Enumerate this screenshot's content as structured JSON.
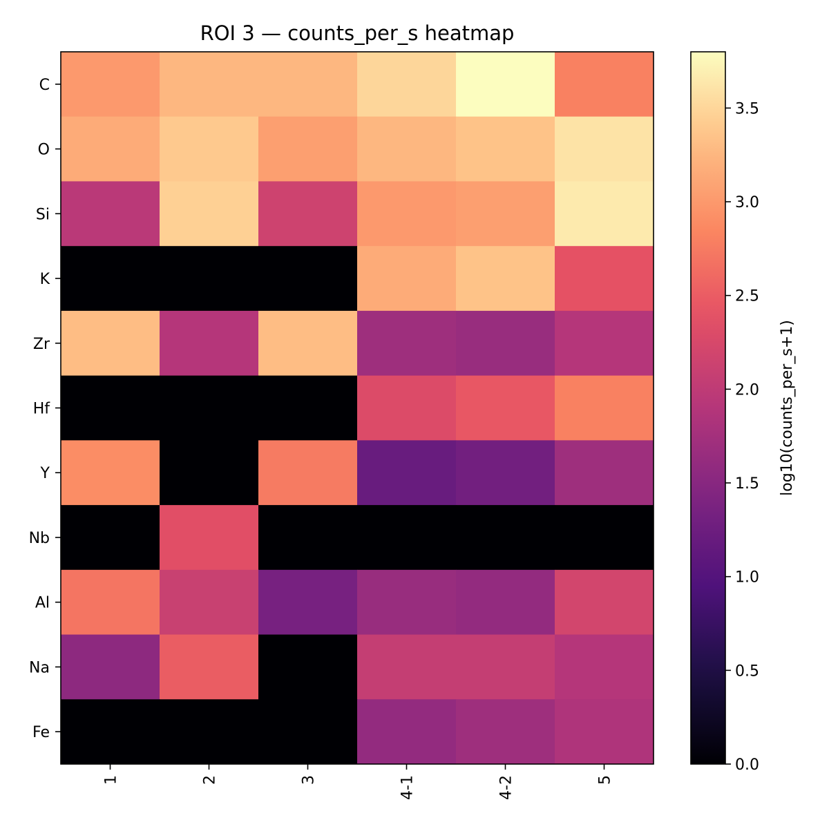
{
  "chart_data": {
    "type": "heatmap",
    "title": "ROI 3 — counts_per_s heatmap",
    "xlabel": "",
    "ylabel": "",
    "x_categories": [
      "1",
      "2",
      "3",
      "4-1",
      "4-2",
      "5"
    ],
    "y_categories": [
      "C",
      "O",
      "Si",
      "K",
      "Zr",
      "Hf",
      "Y",
      "Nb",
      "Al",
      "Na",
      "Fe"
    ],
    "values": [
      [
        3.0,
        3.25,
        3.25,
        3.5,
        3.8,
        2.8
      ],
      [
        3.15,
        3.4,
        3.05,
        3.25,
        3.35,
        3.6
      ],
      [
        1.95,
        3.45,
        2.15,
        3.0,
        3.05,
        3.65
      ],
      [
        0.0,
        0.0,
        0.0,
        3.15,
        3.35,
        2.4
      ],
      [
        3.3,
        1.9,
        3.3,
        1.7,
        1.65,
        1.9
      ],
      [
        0.0,
        0.0,
        0.0,
        2.3,
        2.45,
        2.8
      ],
      [
        2.9,
        0.0,
        2.75,
        1.2,
        1.3,
        1.7
      ],
      [
        0.0,
        2.35,
        0.0,
        0.0,
        0.0,
        0.0
      ],
      [
        2.7,
        2.1,
        1.35,
        1.65,
        1.6,
        2.2
      ],
      [
        1.55,
        2.5,
        0.0,
        2.05,
        2.05,
        1.9
      ],
      [
        0.0,
        0.0,
        0.0,
        1.6,
        1.7,
        1.85
      ]
    ],
    "colormap": "magma",
    "vmin": 0.0,
    "vmax": 3.8,
    "colorbar": {
      "label": "log10(counts_per_s+1)",
      "ticks": [
        0.0,
        0.5,
        1.0,
        1.5,
        2.0,
        2.5,
        3.0,
        3.5
      ],
      "tick_labels": [
        "0.0",
        "0.5",
        "1.0",
        "1.5",
        "2.0",
        "2.5",
        "3.0",
        "3.5"
      ]
    }
  }
}
